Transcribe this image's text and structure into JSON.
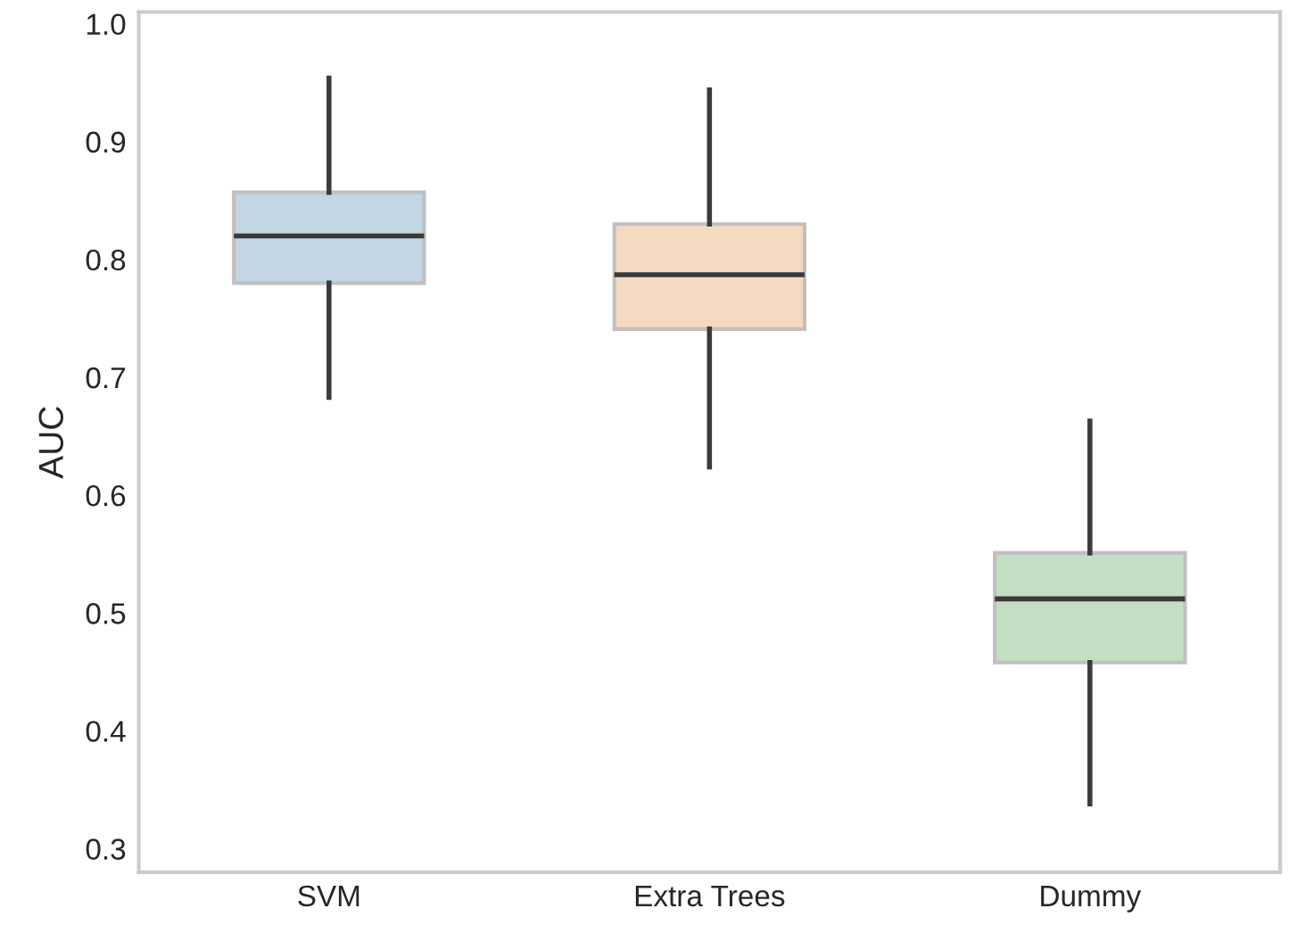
{
  "chart_data": {
    "type": "box",
    "ylabel": "AUC",
    "categories": [
      "SVM",
      "Extra Trees",
      "Dummy"
    ],
    "colors": [
      "#c2d6e4",
      "#f6d9c1",
      "#c4dfc4"
    ],
    "boxes": [
      {
        "low": 0.683,
        "q1": 0.78,
        "median": 0.82,
        "q3": 0.857,
        "high": 0.954
      },
      {
        "low": 0.624,
        "q1": 0.741,
        "median": 0.787,
        "q3": 0.83,
        "high": 0.944
      },
      {
        "low": 0.338,
        "q1": 0.458,
        "median": 0.512,
        "q3": 0.551,
        "high": 0.663
      }
    ],
    "ylim": [
      0.28,
      1.01
    ],
    "yticks": [
      0.3,
      0.4,
      0.5,
      0.6,
      0.7,
      0.8,
      0.9,
      {
        "value": 1,
        "label": "1.0"
      }
    ],
    "grid": false
  }
}
